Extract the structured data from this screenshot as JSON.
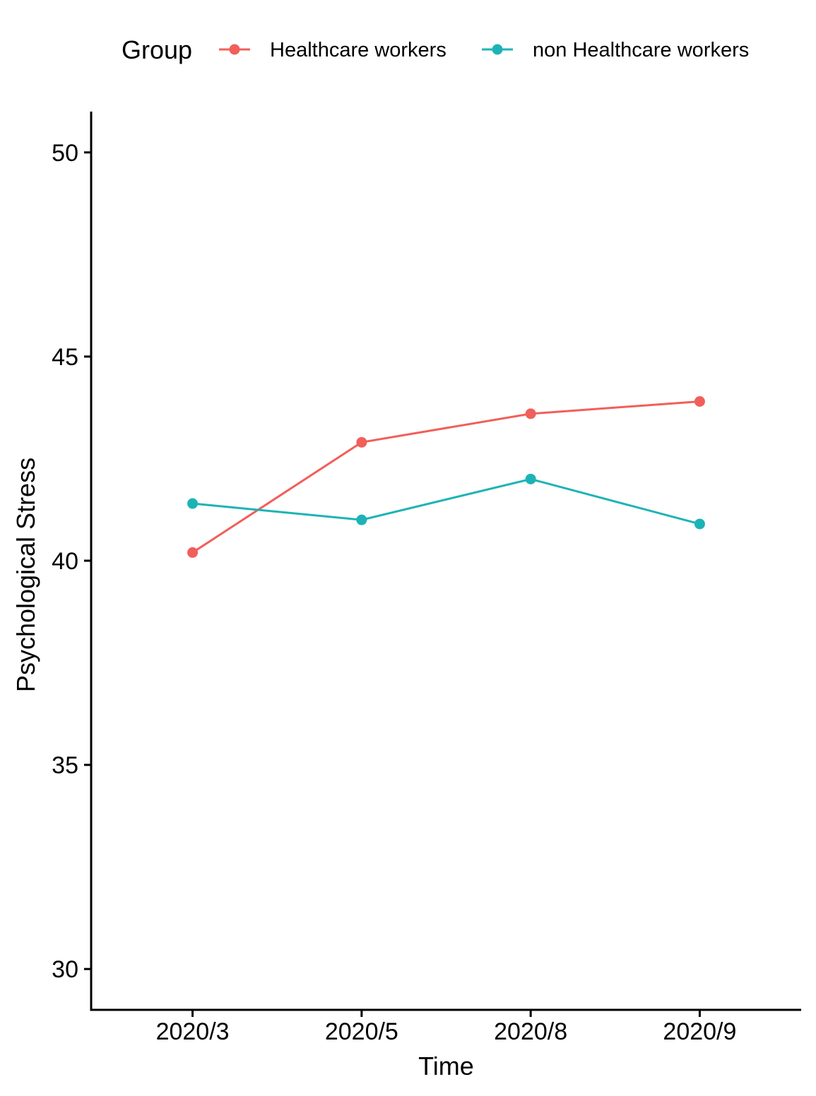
{
  "chart_data": {
    "type": "line",
    "categories": [
      "2020/3",
      "2020/5",
      "2020/8",
      "2020/9"
    ],
    "series": [
      {
        "name": "Healthcare workers",
        "color": "#F15F5A",
        "values": [
          40.2,
          42.9,
          43.6,
          43.9
        ]
      },
      {
        "name": "non Healthcare workers",
        "color": "#1DB3B6",
        "values": [
          41.4,
          41.0,
          42.0,
          40.9
        ]
      }
    ],
    "xlabel": "Time",
    "ylabel": "Psychological Stress",
    "ylim": [
      29,
      51
    ],
    "yticks": [
      30,
      35,
      40,
      45,
      50
    ],
    "legend": {
      "title": "Group",
      "position": "top"
    },
    "grid": false
  }
}
